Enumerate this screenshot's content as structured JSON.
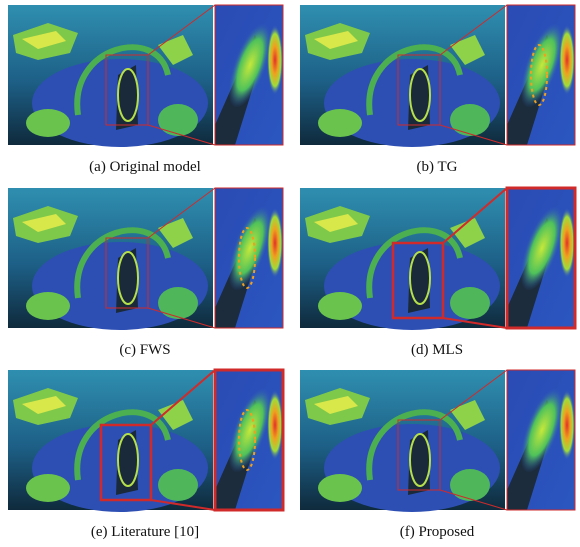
{
  "figure": {
    "panels": [
      {
        "caption": "(a) Original model"
      },
      {
        "caption": "(b) TG"
      },
      {
        "caption": "(c) FWS"
      },
      {
        "caption": "(d) MLS"
      },
      {
        "caption": "(e) Literature [10]"
      },
      {
        "caption": "(f) Proposed"
      }
    ]
  }
}
